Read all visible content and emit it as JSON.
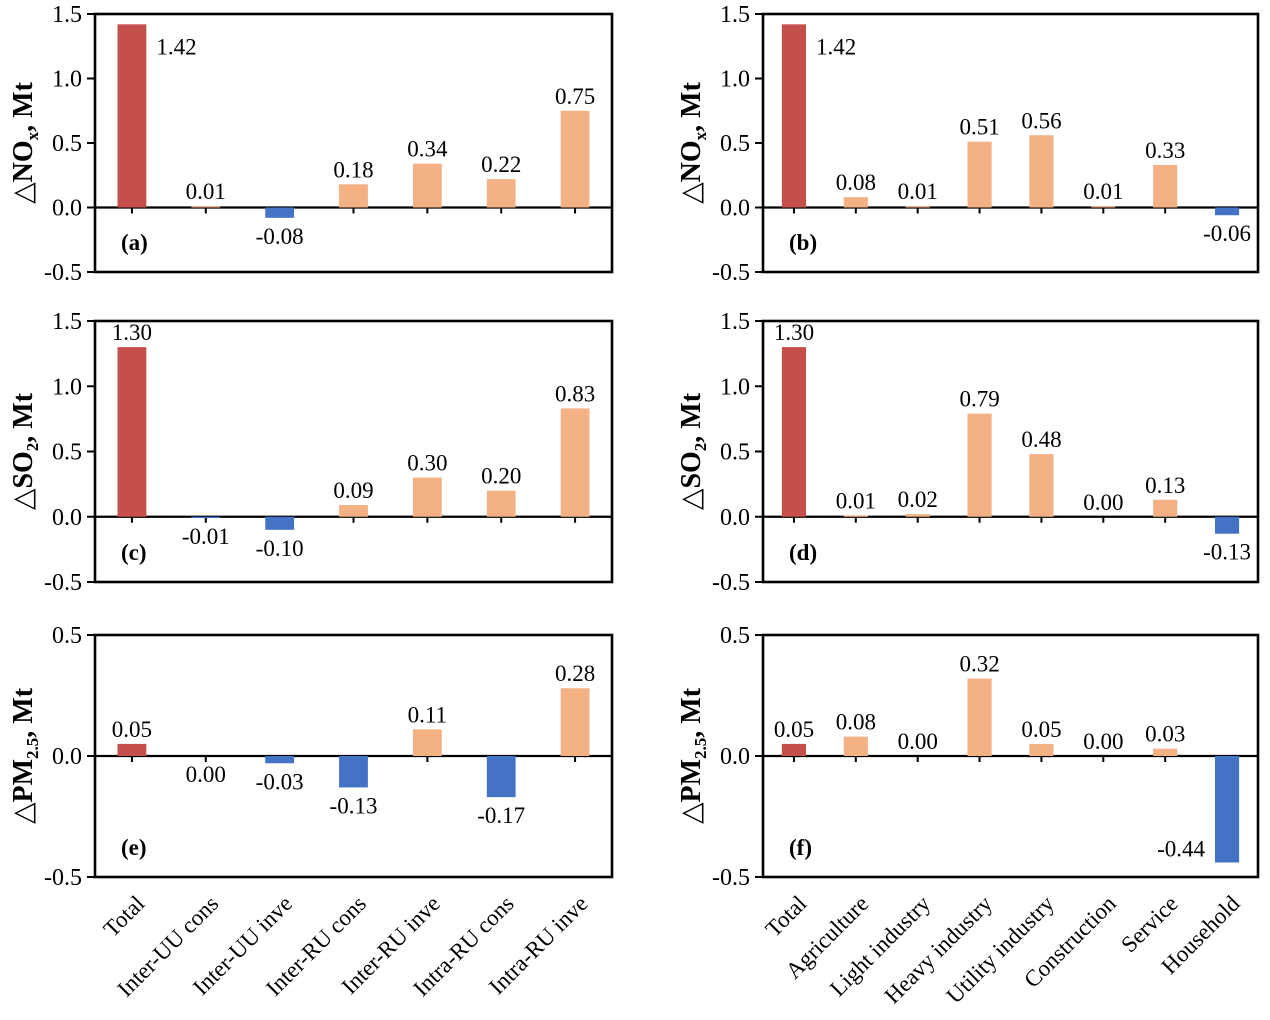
{
  "figure": {
    "description": "Six-panel bar chart figure of emission changes",
    "background": "#FFFFFF"
  },
  "colors": {
    "total_bar": "#C5504B",
    "positive_bar": "#F4B183",
    "negative_bar": "#4472C4",
    "axis": "#000000",
    "text": "#000000"
  },
  "categories": {
    "left": [
      "Total",
      "Inter-UU cons",
      "Inter-UU inve",
      "Inter-RU cons",
      "Inter-RU inve",
      "Intra-RU cons",
      "Intra-RU inve"
    ],
    "right": [
      "Total",
      "Agriculture",
      "Light industry",
      "Heavy industry",
      "Utility industry",
      "Construction",
      "Service",
      "Household"
    ]
  },
  "chart_data": [
    {
      "type": "bar",
      "panel_label": "(a)",
      "ylabel": "△NOx, Mt",
      "ylabel_segments": [
        {
          "text": "△NO"
        },
        {
          "text": "x",
          "sub": true
        },
        {
          "text": ", Mt"
        }
      ],
      "ylim": [
        -0.5,
        1.5
      ],
      "ytick_values": [
        1.5,
        1.0,
        0.5,
        0.0,
        -0.5
      ],
      "ytick_labels": [
        "1.5",
        "1.0",
        "0.5",
        "0.0",
        "-0.5"
      ],
      "categories_key": "left",
      "values": [
        1.42,
        0.01,
        -0.08,
        0.18,
        0.34,
        0.22,
        0.75
      ],
      "value_labels": [
        "1.42",
        "0.01",
        "-0.08",
        "0.18",
        "0.34",
        "0.22",
        "0.75"
      ],
      "below_indices": []
    },
    {
      "type": "bar",
      "panel_label": "(b)",
      "ylabel": "△NOx, Mt",
      "ylabel_segments": [
        {
          "text": "△NO"
        },
        {
          "text": "x",
          "sub": true
        },
        {
          "text": ", Mt"
        }
      ],
      "ylim": [
        -0.5,
        1.5
      ],
      "ytick_values": [
        1.5,
        1.0,
        0.5,
        0.0,
        -0.5
      ],
      "ytick_labels": [
        "1.5",
        "1.0",
        "0.5",
        "0.0",
        "-0.5"
      ],
      "categories_key": "right",
      "values": [
        1.42,
        0.08,
        0.01,
        0.51,
        0.56,
        0.01,
        0.33,
        -0.06
      ],
      "value_labels": [
        "1.42",
        "0.08",
        "0.01",
        "0.51",
        "0.56",
        "0.01",
        "0.33",
        "-0.06"
      ],
      "below_indices": []
    },
    {
      "type": "bar",
      "panel_label": "(c)",
      "ylabel": "△SO2, Mt",
      "ylabel_segments": [
        {
          "text": "△SO"
        },
        {
          "text": "2",
          "sub": true
        },
        {
          "text": ", Mt"
        }
      ],
      "ylim": [
        -0.5,
        1.5
      ],
      "ytick_values": [
        1.5,
        1.0,
        0.5,
        0.0,
        -0.5
      ],
      "ytick_labels": [
        "1.5",
        "1.0",
        "0.5",
        "0.0",
        "-0.5"
      ],
      "categories_key": "left",
      "values": [
        1.3,
        -0.01,
        -0.1,
        0.09,
        0.3,
        0.2,
        0.83
      ],
      "value_labels": [
        "1.30",
        "-0.01",
        "-0.10",
        "0.09",
        "0.30",
        "0.20",
        "0.83"
      ],
      "below_indices": []
    },
    {
      "type": "bar",
      "panel_label": "(d)",
      "ylabel": "△SO2, Mt",
      "ylabel_segments": [
        {
          "text": "△SO"
        },
        {
          "text": "2",
          "sub": true
        },
        {
          "text": ", Mt"
        }
      ],
      "ylim": [
        -0.5,
        1.5
      ],
      "ytick_values": [
        1.5,
        1.0,
        0.5,
        0.0,
        -0.5
      ],
      "ytick_labels": [
        "1.5",
        "1.0",
        "0.5",
        "0.0",
        "-0.5"
      ],
      "categories_key": "right",
      "values": [
        1.3,
        0.01,
        0.02,
        0.79,
        0.48,
        0.0,
        0.13,
        -0.13
      ],
      "value_labels": [
        "1.30",
        "0.01",
        "0.02",
        "0.79",
        "0.48",
        "0.00",
        "0.13",
        "-0.13"
      ],
      "below_indices": []
    },
    {
      "type": "bar",
      "panel_label": "(e)",
      "ylabel": "△PM2.5, Mt",
      "ylabel_segments": [
        {
          "text": "△PM"
        },
        {
          "text": "2.5",
          "sub": true
        },
        {
          "text": ", Mt"
        }
      ],
      "ylim": [
        -0.5,
        0.5
      ],
      "ytick_values": [
        0.5,
        0.0,
        -0.5
      ],
      "ytick_labels": [
        "0.5",
        "0.0",
        "-0.5"
      ],
      "categories_key": "left",
      "values": [
        0.05,
        0.0,
        -0.03,
        -0.13,
        0.11,
        -0.17,
        0.28
      ],
      "value_labels": [
        "0.05",
        "0.00",
        "-0.03",
        "-0.13",
        "0.11",
        "-0.17",
        "0.28"
      ],
      "below_indices": [
        1
      ]
    },
    {
      "type": "bar",
      "panel_label": "(f)",
      "ylabel": "△PM2.5, Mt",
      "ylabel_segments": [
        {
          "text": "△PM"
        },
        {
          "text": "2.5",
          "sub": true
        },
        {
          "text": ", Mt"
        }
      ],
      "ylim": [
        -0.5,
        0.5
      ],
      "ytick_values": [
        0.5,
        0.0,
        -0.5
      ],
      "ytick_labels": [
        "0.5",
        "0.0",
        "-0.5"
      ],
      "categories_key": "right",
      "values": [
        0.05,
        0.08,
        0.0,
        0.32,
        0.05,
        0.0,
        0.03,
        -0.44
      ],
      "value_labels": [
        "0.05",
        "0.08",
        "0.00",
        "0.32",
        "0.05",
        "0.00",
        "0.03",
        "-0.44"
      ],
      "below_indices": []
    }
  ]
}
